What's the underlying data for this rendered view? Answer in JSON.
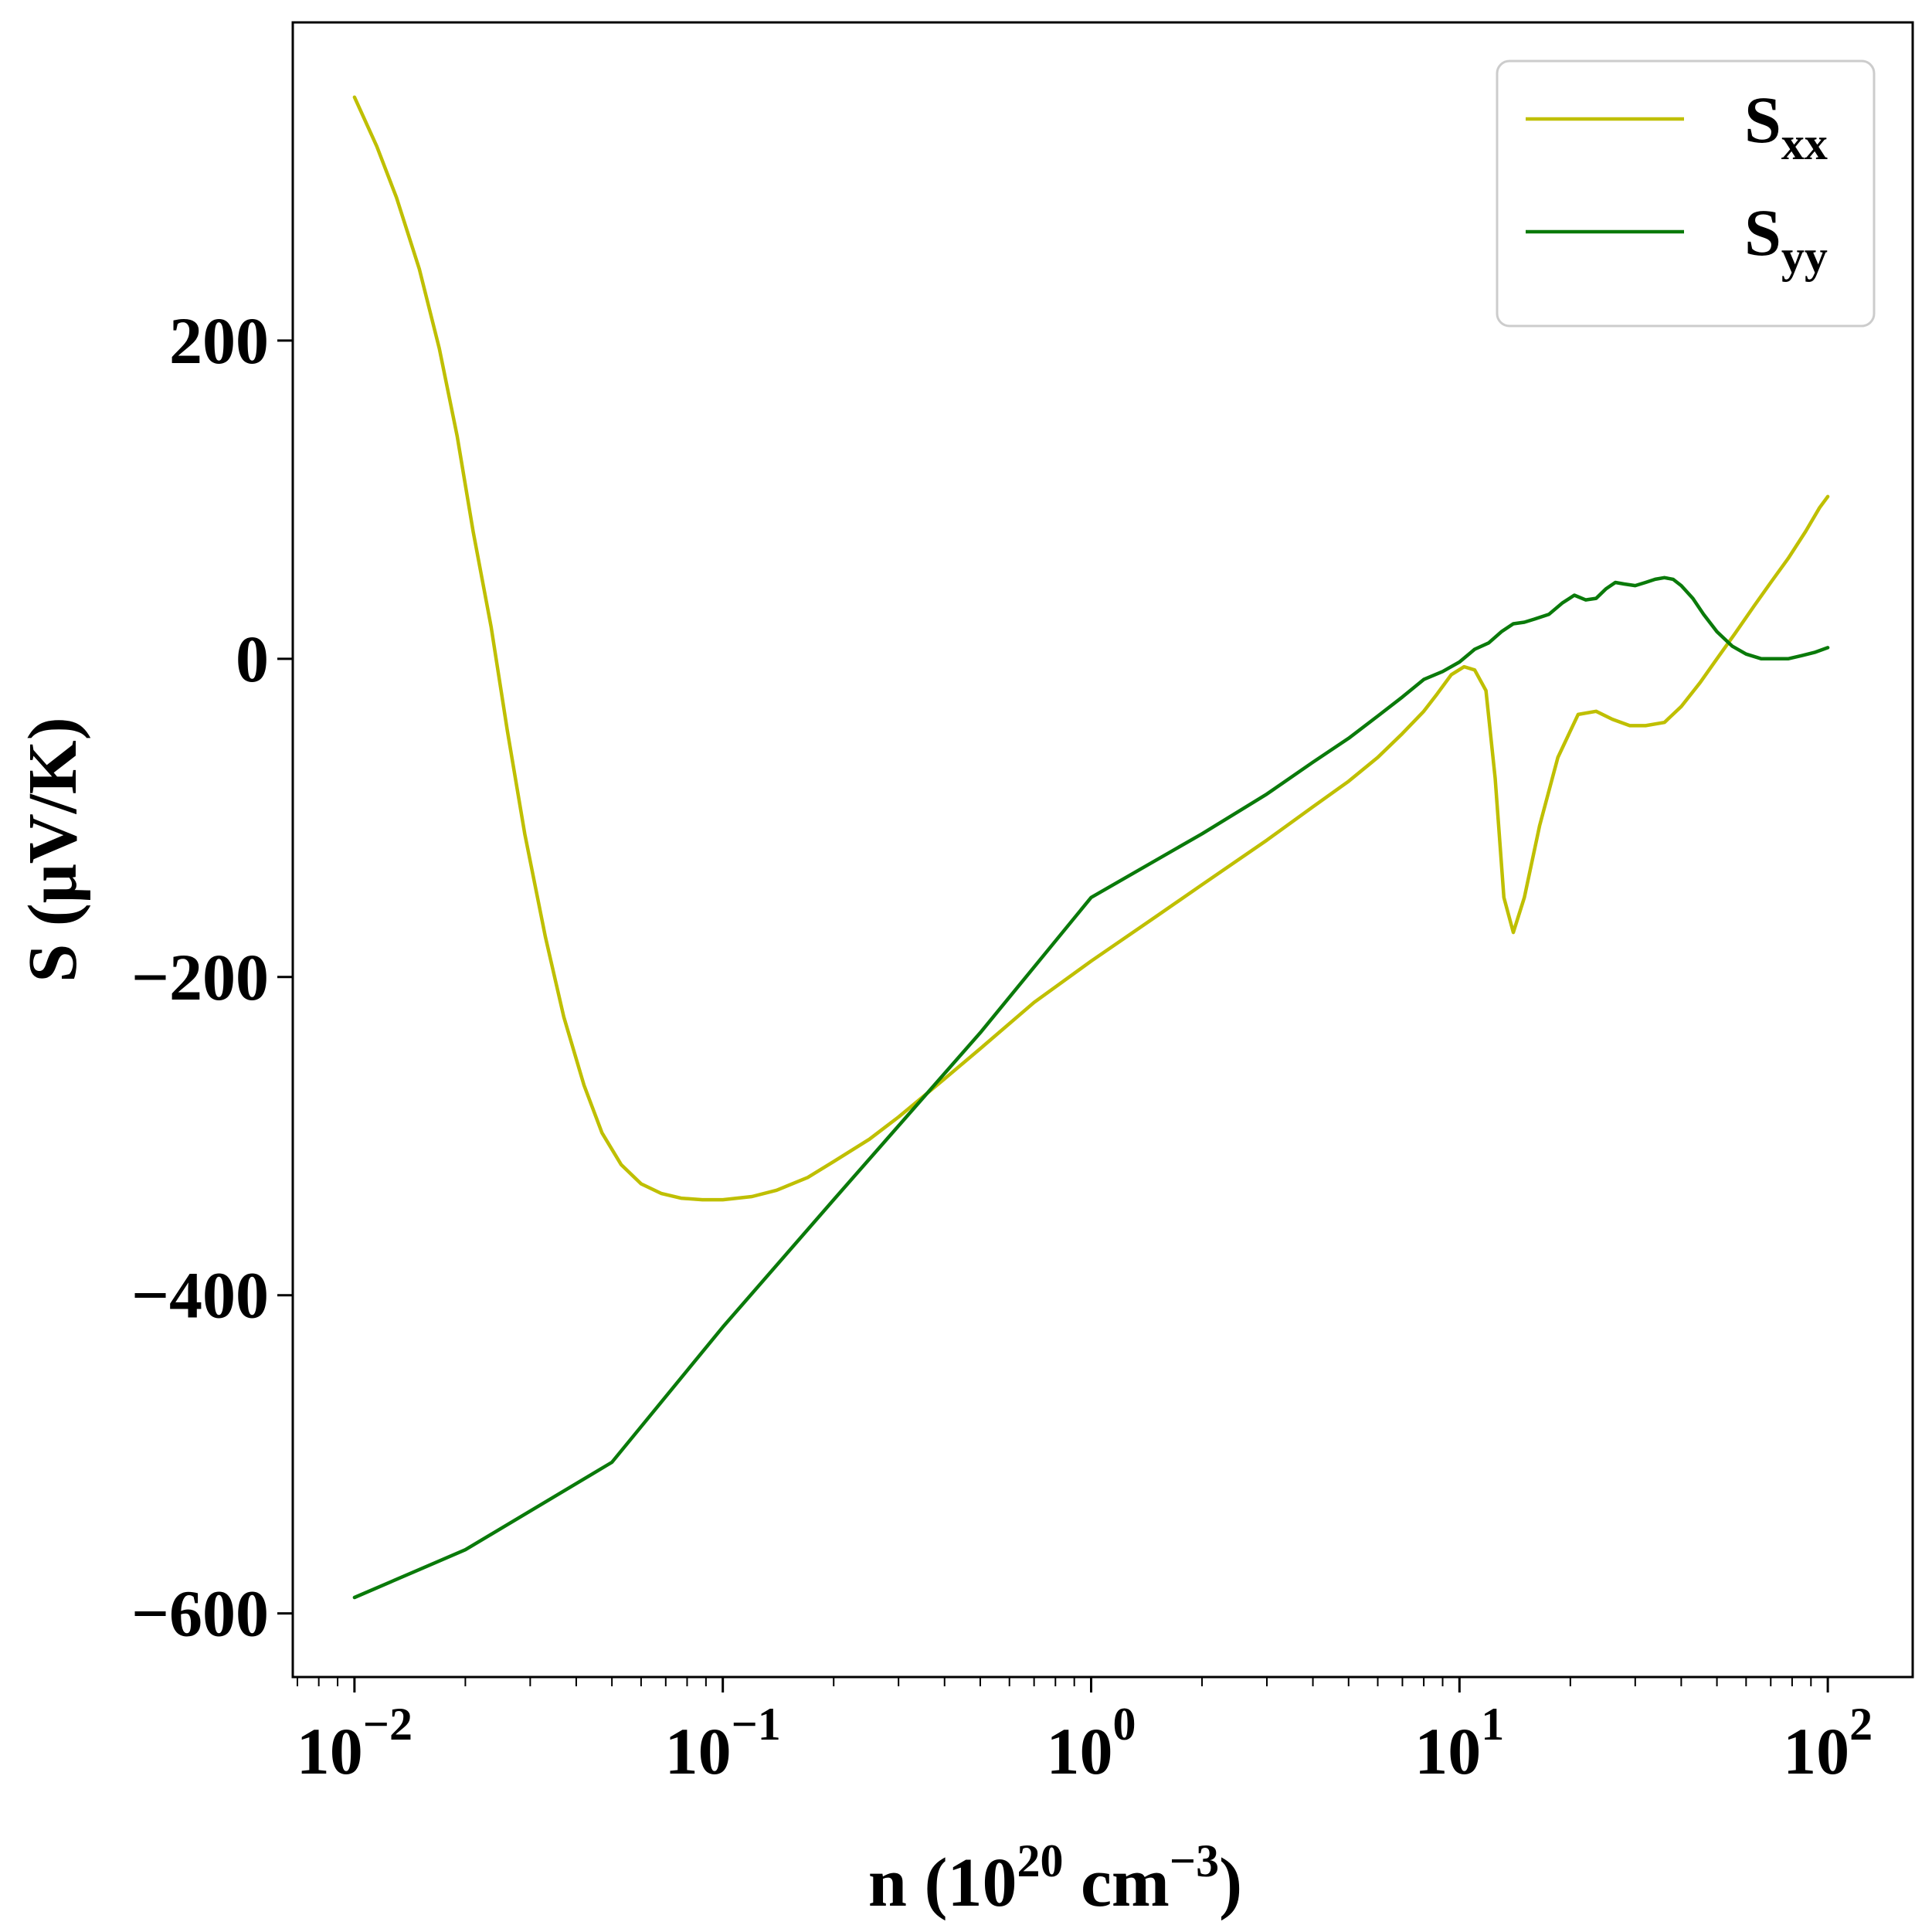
{
  "chart_data": {
    "type": "line",
    "xscale": "log",
    "xlim": [
      0.0068,
      170
    ],
    "ylim": [
      -640,
      400
    ],
    "xlabel": {
      "base": "n (10",
      "exp1": "20",
      "middle": " cm",
      "exp2": "−3",
      "end": ")"
    },
    "ylabel": "S (μV/K)",
    "xticks": [
      {
        "value": 0.01,
        "base": "10",
        "exp": "−2"
      },
      {
        "value": 0.1,
        "base": "10",
        "exp": "−1"
      },
      {
        "value": 1,
        "base": "10",
        "exp": "0"
      },
      {
        "value": 10,
        "base": "10",
        "exp": "1"
      },
      {
        "value": 100,
        "base": "10",
        "exp": "2"
      }
    ],
    "yticks": [
      {
        "value": 200,
        "label": "200"
      },
      {
        "value": 0,
        "label": "0"
      },
      {
        "value": -200,
        "label": "−200"
      },
      {
        "value": -400,
        "label": "−400"
      },
      {
        "value": -600,
        "label": "−600"
      }
    ],
    "legend": {
      "position": "top-right"
    },
    "grid": false,
    "series": [
      {
        "name": "S",
        "sub": "xx",
        "color": "#bfbf00",
        "x": [
          0.01,
          0.0115,
          0.013,
          0.015,
          0.017,
          0.019,
          0.021,
          0.0235,
          0.026,
          0.029,
          0.033,
          0.037,
          0.042,
          0.047,
          0.053,
          0.06,
          0.068,
          0.077,
          0.088,
          0.1,
          0.12,
          0.14,
          0.17,
          0.2,
          0.25,
          0.3,
          0.4,
          0.5,
          0.7,
          1.0,
          1.5,
          2.0,
          3.0,
          4.0,
          5.0,
          6.0,
          7.0,
          8.0,
          8.7,
          9.5,
          10.3,
          11.0,
          11.8,
          12.5,
          13.2,
          14.0,
          15.0,
          16.5,
          18.5,
          21.0,
          23.5,
          26.0,
          29.0,
          32.0,
          36.0,
          40.0,
          45.0,
          50.0,
          56.0,
          63.0,
          70.0,
          78.0,
          87.0,
          95.0,
          100.0
        ],
        "y": [
          353,
          322,
          290,
          245,
          195,
          140,
          80,
          20,
          -45,
          -110,
          -175,
          -225,
          -268,
          -298,
          -318,
          -330,
          -336,
          -339,
          -340,
          -340,
          -338,
          -334,
          -326,
          -316,
          -302,
          -288,
          -264,
          -245,
          -216,
          -190,
          -162,
          -142,
          -114,
          -93,
          -77,
          -62,
          -47,
          -33,
          -22,
          -10,
          -5,
          -7,
          -20,
          -75,
          -150,
          -172,
          -150,
          -105,
          -62,
          -35,
          -33,
          -38,
          -42,
          -42,
          -40,
          -30,
          -15,
          0,
          16,
          33,
          48,
          63,
          80,
          95,
          102
        ]
      },
      {
        "name": "S",
        "sub": "yy",
        "color": "#0a7a0a",
        "x": [
          0.01,
          0.02,
          0.05,
          0.1,
          0.2,
          0.5,
          1.0,
          2.0,
          3.0,
          4.0,
          5.0,
          6.0,
          7.0,
          8.0,
          9.0,
          10.0,
          11.0,
          12.0,
          13.0,
          14.0,
          15.0,
          16.0,
          17.5,
          19.0,
          20.5,
          22.0,
          23.5,
          25.0,
          26.5,
          28.0,
          30.0,
          32.0,
          34.0,
          36.0,
          38.0,
          40.0,
          43.0,
          46.0,
          50.0,
          55.0,
          60.0,
          66.0,
          72.0,
          78.0,
          85.0,
          92.0,
          100.0
        ],
        "y": [
          -590,
          -560,
          -505,
          -420,
          -340,
          -235,
          -150,
          -110,
          -85,
          -65,
          -50,
          -36,
          -24,
          -13,
          -8,
          -2,
          6,
          10,
          17,
          22,
          23,
          25,
          28,
          35,
          40,
          37,
          38,
          44,
          48,
          47,
          46,
          48,
          50,
          51,
          50,
          46,
          38,
          28,
          17,
          8,
          3,
          0,
          0,
          0,
          2,
          4,
          7
        ]
      }
    ]
  }
}
